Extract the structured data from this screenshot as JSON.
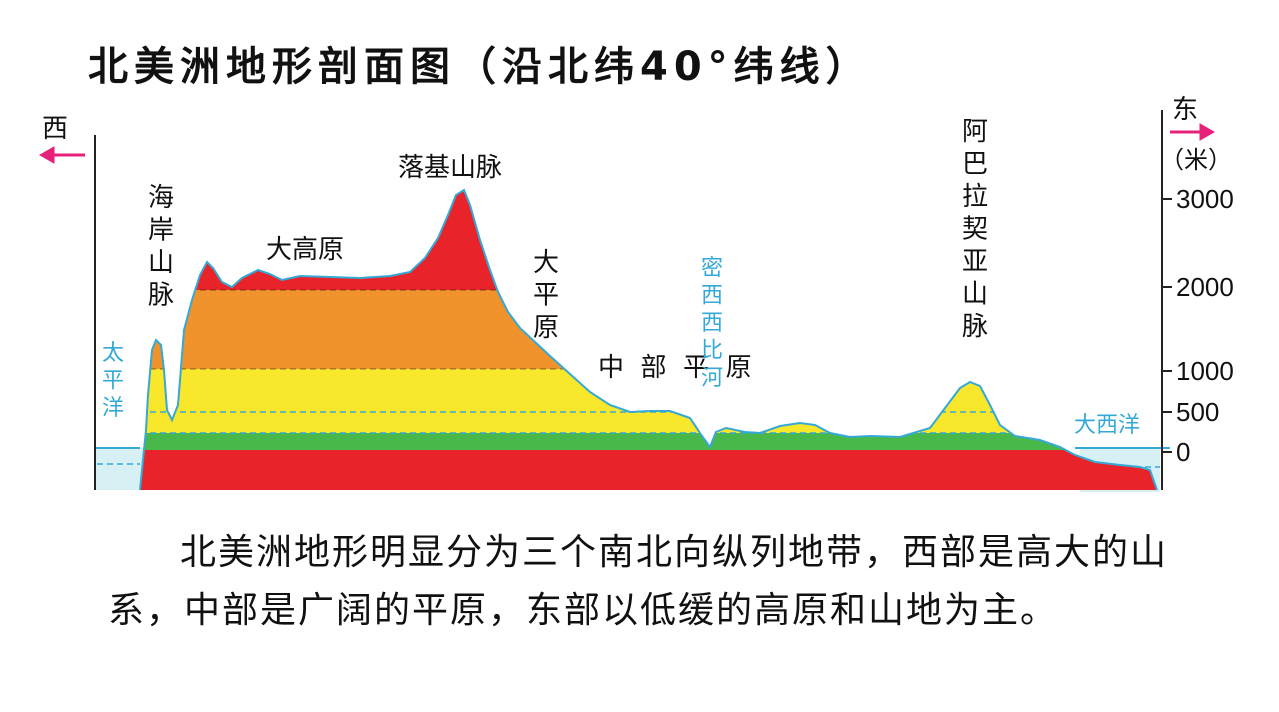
{
  "title": "北美洲地形剖面图（沿北纬40°纬线）",
  "direction": {
    "west": "西",
    "east": "东",
    "unit": "（米）"
  },
  "axis": {
    "ticks": [
      "3000",
      "2000",
      "1000",
      "500",
      "0"
    ]
  },
  "labels": {
    "pacific": "太平洋",
    "coast_range": "海岸山脉",
    "great_basin": "大高原",
    "rockies": "落基山脉",
    "great_plains": "大平原",
    "central_plains": "中  部  平  原",
    "mississippi": "密西西比河",
    "appalachians": "阿巴拉契亚山脉",
    "atlantic": "大西洋"
  },
  "colors": {
    "red": "#e8232a",
    "orange": "#f0932c",
    "yellow": "#f8e72a",
    "green": "#49b84a",
    "water": "#d6f0f4",
    "outline": "#35a9d6",
    "arrow": "#e6217a"
  },
  "caption": "北美洲地形明显分为三个南北向纵列地带，西部是高大的山系，中部是广阔的平原，东部以低缓的高原和山地为主。"
}
